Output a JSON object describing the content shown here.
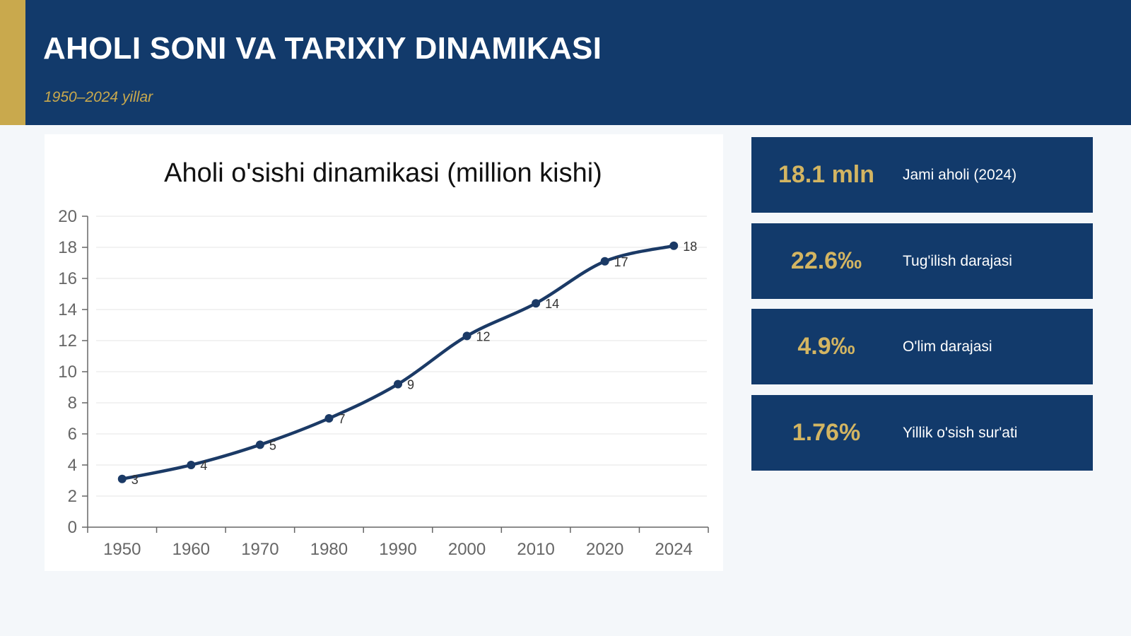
{
  "header": {
    "title": "AHOLI SONI VA TARIXIY DINAMIKASI",
    "subtitle": "1950–2024 yillar"
  },
  "colors": {
    "navy": "#123a6b",
    "gold": "#c9a94d",
    "line": "#1b3a66",
    "grid": "#e6e6e6",
    "axis": "#666666"
  },
  "stats": [
    {
      "value": "18.1 mln",
      "label": "Jami aholi (2024)"
    },
    {
      "value": "22.6‰",
      "label": "Tug'ilish darajasi"
    },
    {
      "value": "4.9‰",
      "label": "O'lim darajasi"
    },
    {
      "value": "1.76%",
      "label": "Yillik o'sish sur'ati"
    }
  ],
  "chart_data": {
    "type": "line",
    "title": "Aholi o'sishi dinamikasi (million kishi)",
    "categories": [
      "1950",
      "1960",
      "1970",
      "1980",
      "1990",
      "2000",
      "2010",
      "2020",
      "2024"
    ],
    "series": [
      {
        "values": [
          3.1,
          4.0,
          5.3,
          7.0,
          9.2,
          12.3,
          14.4,
          17.1,
          18.1
        ],
        "data_labels": [
          "3",
          "4",
          "5",
          "7",
          "9",
          "12",
          "14",
          "17",
          "18"
        ]
      }
    ],
    "ylim": [
      0,
      20
    ],
    "yticks": [
      0,
      2,
      4,
      6,
      8,
      10,
      12,
      14,
      16,
      18,
      20
    ],
    "grid": true,
    "legend": "none",
    "smooth": true
  }
}
